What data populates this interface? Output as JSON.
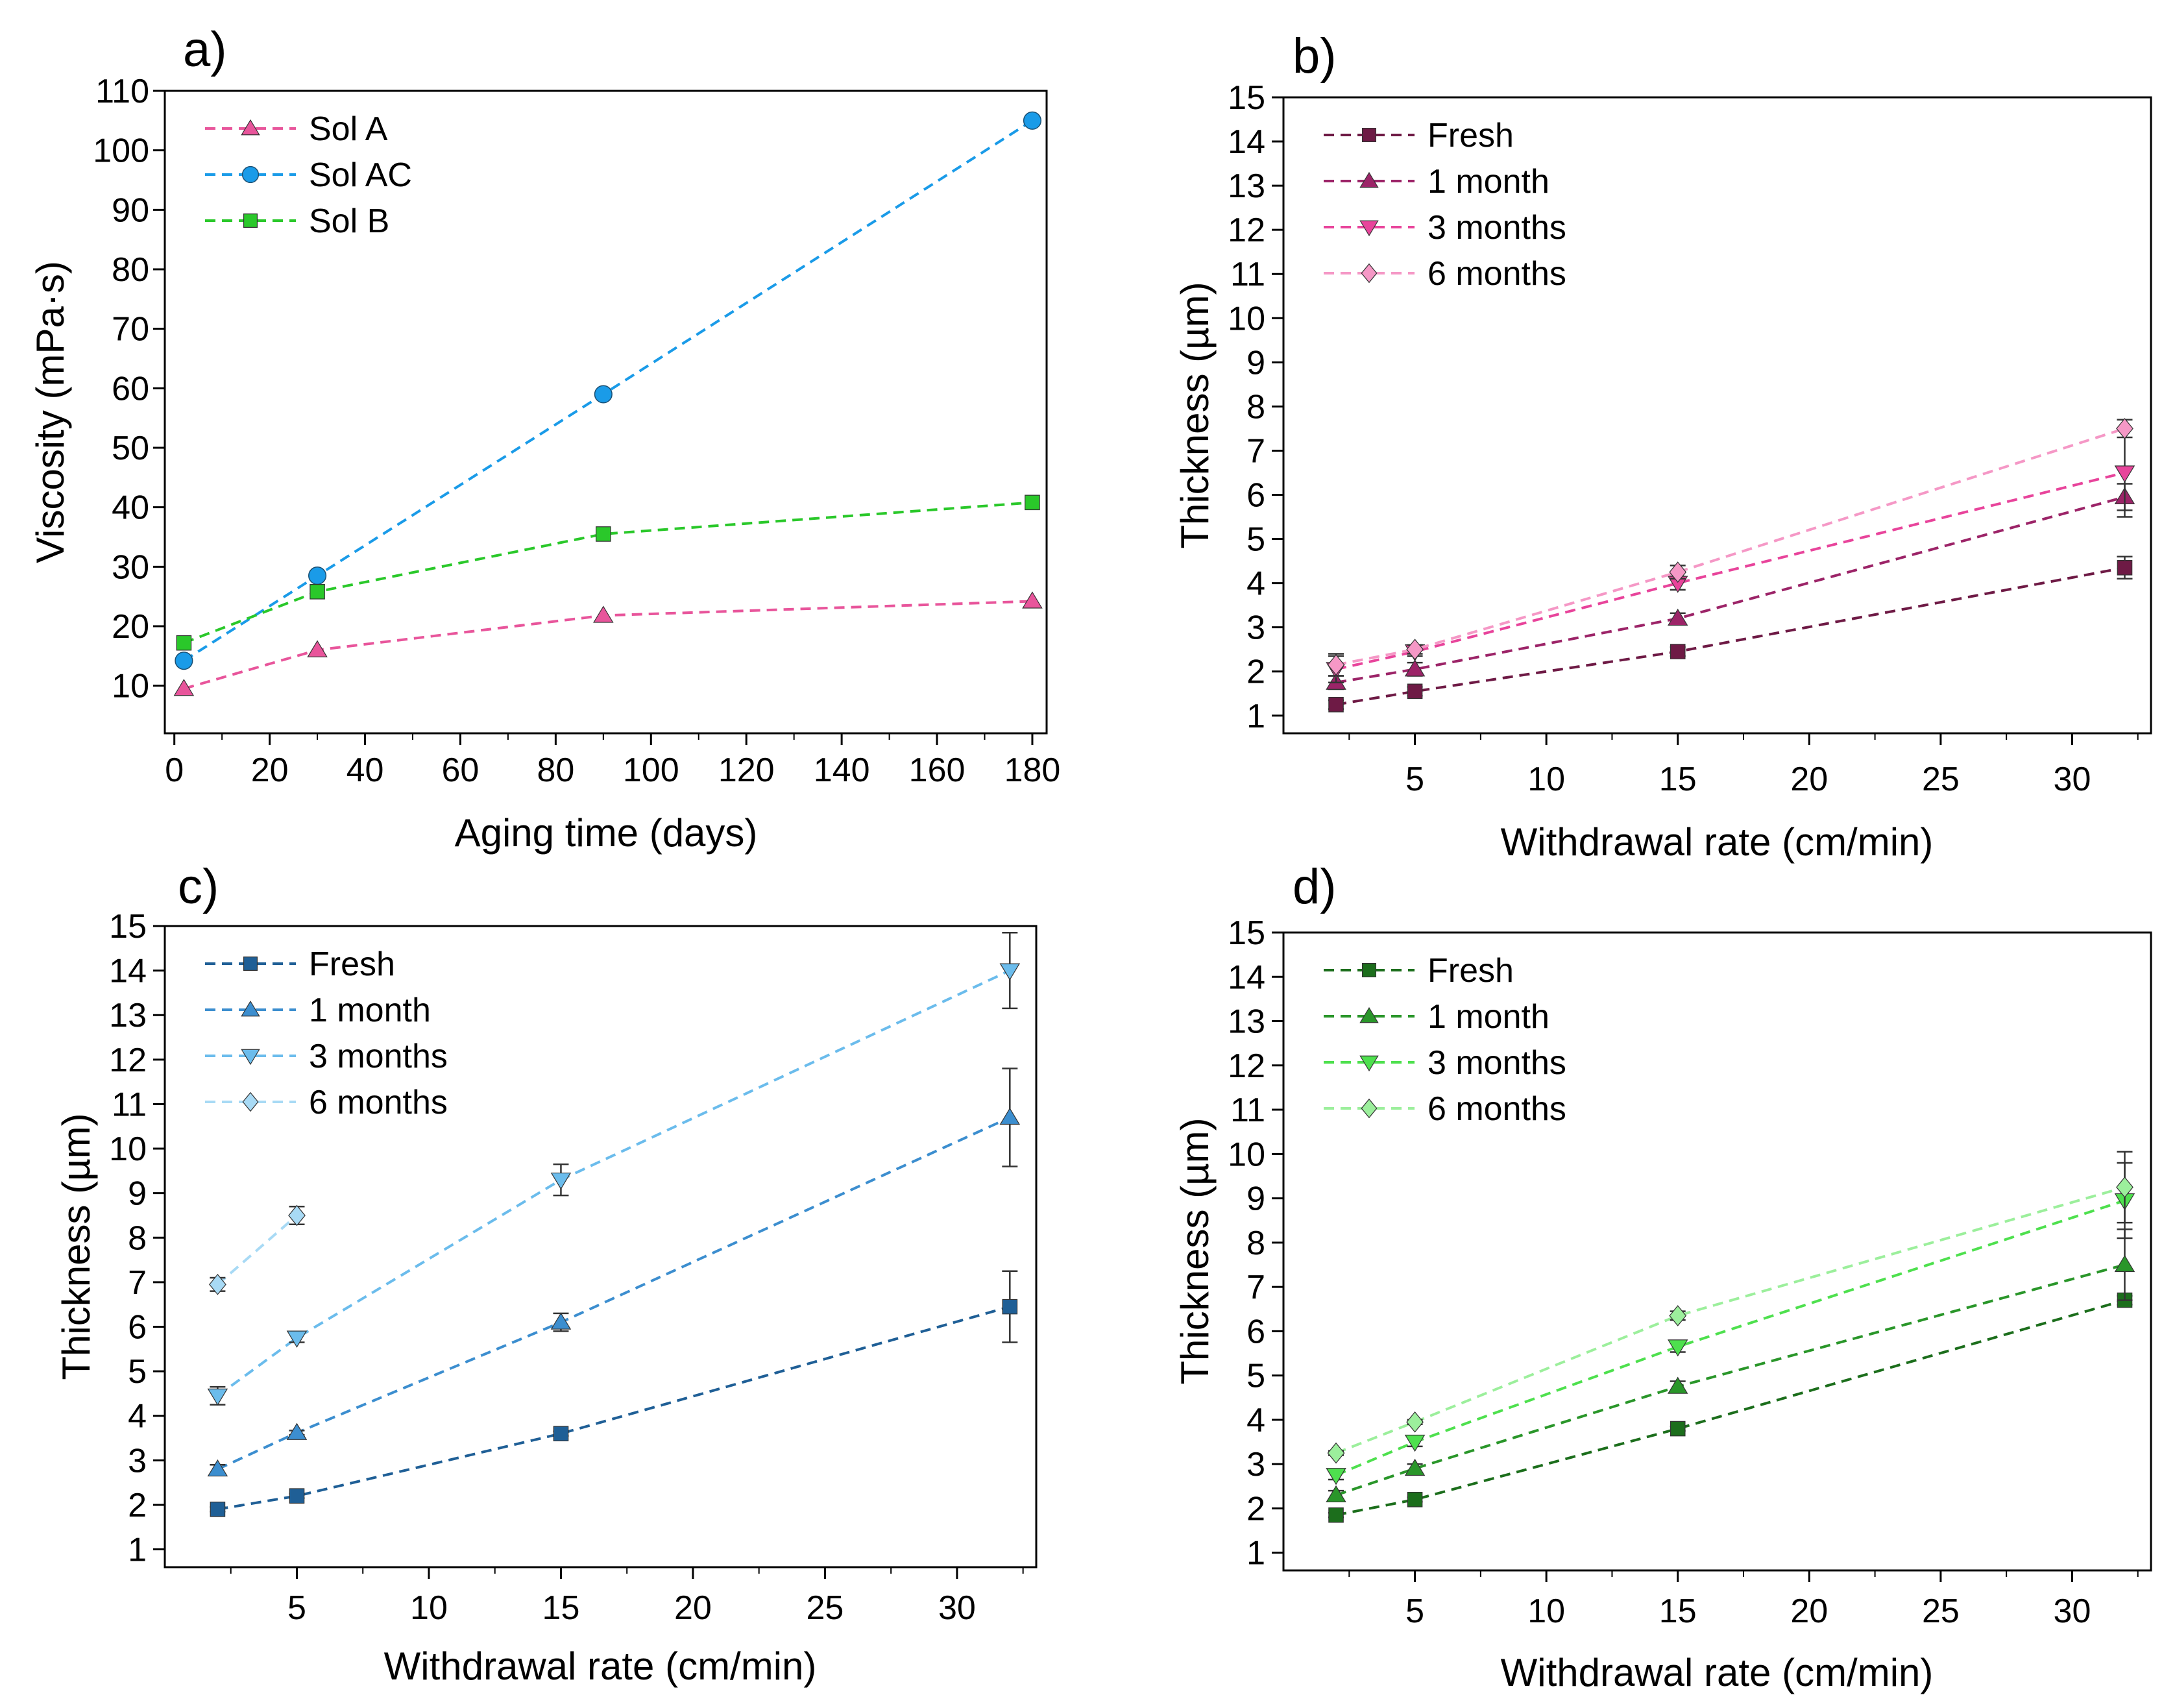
{
  "chart_data": [
    {
      "type": "line",
      "panel_label": "a)",
      "xlabel": "Aging time (days)",
      "ylabel": "Viscosity (mPa·s)",
      "xlim": [
        -2,
        183
      ],
      "ylim": [
        2,
        110
      ],
      "xticks": [
        0,
        20,
        40,
        60,
        80,
        100,
        120,
        140,
        160,
        180
      ],
      "yticks": [
        10,
        20,
        30,
        40,
        50,
        60,
        70,
        80,
        90,
        100,
        110
      ],
      "legend_position": "top-left",
      "series": [
        {
          "name": "Sol A",
          "color": "#e8559b",
          "marker": "triangle-up",
          "x": [
            2,
            30,
            90,
            180
          ],
          "values": [
            9.5,
            16,
            21.8,
            24.2
          ]
        },
        {
          "name": "Sol AC",
          "color": "#1a9be8",
          "marker": "circle",
          "x": [
            2,
            30,
            90,
            180
          ],
          "values": [
            14.2,
            28.5,
            59,
            105
          ]
        },
        {
          "name": "Sol B",
          "color": "#2ac82a",
          "marker": "square",
          "x": [
            2,
            30,
            90,
            180
          ],
          "values": [
            17.2,
            25.8,
            35.5,
            40.8
          ]
        }
      ]
    },
    {
      "type": "line",
      "panel_label": "b)",
      "xlabel": "Withdrawal rate (cm/min)",
      "ylabel": "Thickness (µm)",
      "xlim": [
        0,
        33
      ],
      "ylim": [
        0.6,
        15
      ],
      "xticks": [
        5,
        10,
        15,
        20,
        25,
        30
      ],
      "yticks": [
        1,
        2,
        3,
        4,
        5,
        6,
        7,
        8,
        9,
        10,
        11,
        12,
        13,
        14,
        15
      ],
      "legend_position": "top-left",
      "series": [
        {
          "name": "Fresh",
          "color": "#6e1a45",
          "marker": "square",
          "x": [
            2,
            5,
            15,
            32
          ],
          "values": [
            1.25,
            1.55,
            2.45,
            4.35
          ],
          "errors": [
            0.1,
            0.1,
            0.1,
            0.25
          ]
        },
        {
          "name": "1 month",
          "color": "#9c2468",
          "marker": "triangle-up",
          "x": [
            2,
            5,
            15,
            32
          ],
          "values": [
            1.75,
            2.05,
            3.2,
            5.95
          ],
          "errors": [
            0.15,
            0.15,
            0.12,
            0.3
          ]
        },
        {
          "name": "3 months",
          "color": "#e8449b",
          "marker": "triangle-down",
          "x": [
            2,
            5,
            15,
            32
          ],
          "values": [
            2.05,
            2.45,
            4.0,
            6.5
          ],
          "errors": [
            0.3,
            0.1,
            0.15,
            1.0
          ]
        },
        {
          "name": "6 months",
          "color": "#f598c6",
          "marker": "diamond",
          "x": [
            2,
            5,
            15,
            32
          ],
          "values": [
            2.15,
            2.5,
            4.25,
            7.5
          ],
          "errors": [
            0.25,
            0.1,
            0.15,
            0.2
          ]
        }
      ]
    },
    {
      "type": "line",
      "panel_label": "c)",
      "xlabel": "Withdrawal rate (cm/min)",
      "ylabel": "Thickness (µm)",
      "xlim": [
        0,
        33
      ],
      "ylim": [
        0.6,
        15
      ],
      "xticks": [
        5,
        10,
        15,
        20,
        25,
        30
      ],
      "yticks": [
        1,
        2,
        3,
        4,
        5,
        6,
        7,
        8,
        9,
        10,
        11,
        12,
        13,
        14,
        15
      ],
      "legend_position": "top-left",
      "series": [
        {
          "name": "Fresh",
          "color": "#1f5f96",
          "marker": "square",
          "x": [
            2,
            5,
            15,
            32
          ],
          "values": [
            1.9,
            2.2,
            3.6,
            6.45
          ],
          "errors": [
            0.05,
            0.05,
            0.05,
            0.8
          ]
        },
        {
          "name": "1 month",
          "color": "#3c8ecf",
          "marker": "triangle-up",
          "x": [
            2,
            5,
            15,
            32
          ],
          "values": [
            2.8,
            3.62,
            6.1,
            10.7
          ],
          "errors": [
            0.1,
            0.05,
            0.2,
            1.1
          ]
        },
        {
          "name": "3 months",
          "color": "#6bbcec",
          "marker": "triangle-down",
          "x": [
            2,
            5,
            15,
            32
          ],
          "values": [
            4.45,
            5.75,
            9.3,
            14.0
          ],
          "errors": [
            0.2,
            0.1,
            0.35,
            0.85
          ]
        },
        {
          "name": "6 months",
          "color": "#a8daf5",
          "marker": "diamond",
          "x": [
            2,
            5
          ],
          "values": [
            6.95,
            8.5
          ],
          "errors": [
            0.15,
            0.2
          ]
        }
      ]
    },
    {
      "type": "line",
      "panel_label": "d)",
      "xlabel": "Withdrawal rate (cm/min)",
      "ylabel": "Thickness (µm)",
      "xlim": [
        0,
        33
      ],
      "ylim": [
        0.6,
        15
      ],
      "xticks": [
        5,
        10,
        15,
        20,
        25,
        30
      ],
      "yticks": [
        1,
        2,
        3,
        4,
        5,
        6,
        7,
        8,
        9,
        10,
        11,
        12,
        13,
        14,
        15
      ],
      "legend_position": "top-left",
      "series": [
        {
          "name": "Fresh",
          "color": "#1c6e1c",
          "marker": "square",
          "x": [
            2,
            5,
            15,
            32
          ],
          "values": [
            1.85,
            2.2,
            3.8,
            6.7
          ],
          "errors": [
            0.05,
            0.05,
            0.05,
            0.1
          ]
        },
        {
          "name": "1 month",
          "color": "#2a962a",
          "marker": "triangle-up",
          "x": [
            2,
            5,
            15,
            32
          ],
          "values": [
            2.3,
            2.9,
            4.75,
            7.5
          ],
          "errors": [
            0.1,
            0.1,
            0.12,
            0.8
          ]
        },
        {
          "name": "3 months",
          "color": "#4ee04e",
          "marker": "triangle-down",
          "x": [
            2,
            5,
            15,
            32
          ],
          "values": [
            2.75,
            3.5,
            5.65,
            8.95
          ],
          "errors": [
            0.1,
            0.1,
            0.12,
            0.85
          ]
        },
        {
          "name": "6 months",
          "color": "#9cef9c",
          "marker": "diamond",
          "x": [
            2,
            5,
            15,
            32
          ],
          "values": [
            3.25,
            3.95,
            6.35,
            9.25
          ],
          "errors": [
            0.05,
            0.05,
            0.1,
            0.8
          ]
        }
      ]
    }
  ]
}
